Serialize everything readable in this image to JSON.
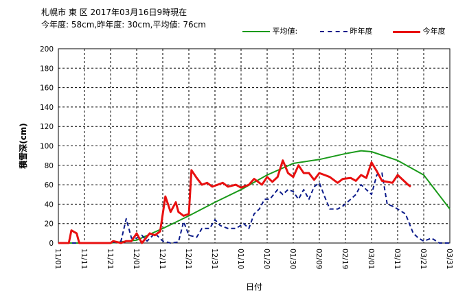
{
  "header": {
    "title_line1": "札幌市 東 区 2017年03月16日9時現在",
    "title_line2": "今年度: 58cm,昨年度: 30cm,平均値: 76cm"
  },
  "legend": {
    "avg_label": "平均値:",
    "last_label": "昨年度",
    "this_label": "今年度"
  },
  "colors": {
    "avg": "#1a9a1a",
    "last": "#0a1a8a",
    "this": "#e81010",
    "grid": "#000000"
  },
  "chart_data": {
    "type": "line",
    "xlabel": "日付",
    "ylabel": "積雪深(cm)",
    "ylim": [
      0,
      200
    ],
    "y_ticks": [
      "0",
      "20",
      "40",
      "60",
      "80",
      "100",
      "120",
      "140",
      "160",
      "180",
      "200"
    ],
    "x_tick_labels": [
      "11/01",
      "11/11",
      "11/21",
      "12/01",
      "12/11",
      "12/21",
      "12/31",
      "01/10",
      "01/20",
      "01/30",
      "02/09",
      "02/19",
      "03/01",
      "03/11",
      "03/21",
      "03/31"
    ],
    "x_start": "11/01",
    "x_end": "03/31",
    "grid": true,
    "legend_position": "top-right",
    "series": [
      {
        "name": "平均値:",
        "style": "solid",
        "points": [
          [
            "11/01",
            0
          ],
          [
            "11/21",
            0
          ],
          [
            "12/01",
            3
          ],
          [
            "12/11",
            15
          ],
          [
            "12/21",
            28
          ],
          [
            "12/31",
            42
          ],
          [
            "01/10",
            55
          ],
          [
            "01/20",
            70
          ],
          [
            "01/30",
            82
          ],
          [
            "02/09",
            86
          ],
          [
            "02/19",
            92
          ],
          [
            "02/25",
            95
          ],
          [
            "03/01",
            94
          ],
          [
            "03/11",
            85
          ],
          [
            "03/21",
            70
          ],
          [
            "03/31",
            35
          ]
        ]
      },
      {
        "name": "昨年度",
        "style": "dashed",
        "points": [
          [
            "11/01",
            0
          ],
          [
            "11/21",
            0
          ],
          [
            "11/25",
            2
          ],
          [
            "11/27",
            25
          ],
          [
            "11/29",
            5
          ],
          [
            "12/01",
            5
          ],
          [
            "12/03",
            8
          ],
          [
            "12/05",
            2
          ],
          [
            "12/08",
            10
          ],
          [
            "12/11",
            2
          ],
          [
            "12/14",
            0
          ],
          [
            "12/17",
            1
          ],
          [
            "12/19",
            22
          ],
          [
            "12/21",
            8
          ],
          [
            "12/24",
            6
          ],
          [
            "12/26",
            15
          ],
          [
            "12/29",
            15
          ],
          [
            "12/31",
            24
          ],
          [
            "01/02",
            18
          ],
          [
            "01/05",
            15
          ],
          [
            "01/08",
            15
          ],
          [
            "01/11",
            20
          ],
          [
            "01/13",
            15
          ],
          [
            "01/15",
            30
          ],
          [
            "01/17",
            35
          ],
          [
            "01/19",
            45
          ],
          [
            "01/21",
            45
          ],
          [
            "01/24",
            55
          ],
          [
            "01/26",
            50
          ],
          [
            "01/28",
            55
          ],
          [
            "01/30",
            53
          ],
          [
            "02/01",
            45
          ],
          [
            "02/03",
            55
          ],
          [
            "02/05",
            45
          ],
          [
            "02/07",
            58
          ],
          [
            "02/09",
            62
          ],
          [
            "02/11",
            48
          ],
          [
            "02/13",
            35
          ],
          [
            "02/16",
            35
          ],
          [
            "02/18",
            38
          ],
          [
            "02/21",
            45
          ],
          [
            "02/23",
            50
          ],
          [
            "02/25",
            60
          ],
          [
            "02/27",
            55
          ],
          [
            "03/01",
            50
          ],
          [
            "03/03",
            70
          ],
          [
            "03/05",
            72
          ],
          [
            "03/07",
            40
          ],
          [
            "03/09",
            38
          ],
          [
            "03/11",
            35
          ],
          [
            "03/14",
            30
          ],
          [
            "03/17",
            10
          ],
          [
            "03/19",
            5
          ],
          [
            "03/21",
            2
          ],
          [
            "03/24",
            5
          ],
          [
            "03/27",
            0
          ],
          [
            "03/31",
            0
          ]
        ]
      },
      {
        "name": "今年度",
        "style": "solid",
        "points": [
          [
            "11/01",
            0
          ],
          [
            "11/05",
            0
          ],
          [
            "11/06",
            13
          ],
          [
            "11/08",
            10
          ],
          [
            "11/09",
            0
          ],
          [
            "11/21",
            0
          ],
          [
            "11/22",
            2
          ],
          [
            "11/25",
            0
          ],
          [
            "11/27",
            2
          ],
          [
            "11/29",
            2
          ],
          [
            "12/01",
            10
          ],
          [
            "12/03",
            0
          ],
          [
            "12/06",
            10
          ],
          [
            "12/08",
            8
          ],
          [
            "12/10",
            12
          ],
          [
            "12/12",
            48
          ],
          [
            "12/14",
            32
          ],
          [
            "12/16",
            42
          ],
          [
            "12/17",
            32
          ],
          [
            "12/19",
            28
          ],
          [
            "12/21",
            30
          ],
          [
            "12/22",
            75
          ],
          [
            "12/24",
            67
          ],
          [
            "12/26",
            60
          ],
          [
            "12/28",
            62
          ],
          [
            "12/30",
            58
          ],
          [
            "01/01",
            60
          ],
          [
            "01/03",
            62
          ],
          [
            "01/05",
            58
          ],
          [
            "01/08",
            60
          ],
          [
            "01/10",
            57
          ],
          [
            "01/13",
            60
          ],
          [
            "01/15",
            66
          ],
          [
            "01/18",
            60
          ],
          [
            "01/20",
            68
          ],
          [
            "01/22",
            63
          ],
          [
            "01/24",
            68
          ],
          [
            "01/26",
            85
          ],
          [
            "01/28",
            72
          ],
          [
            "01/30",
            68
          ],
          [
            "02/01",
            80
          ],
          [
            "02/03",
            72
          ],
          [
            "02/05",
            72
          ],
          [
            "02/07",
            65
          ],
          [
            "02/09",
            72
          ],
          [
            "02/11",
            70
          ],
          [
            "02/13",
            68
          ],
          [
            "02/16",
            62
          ],
          [
            "02/18",
            66
          ],
          [
            "02/21",
            67
          ],
          [
            "02/23",
            64
          ],
          [
            "02/25",
            70
          ],
          [
            "02/27",
            67
          ],
          [
            "03/01",
            83
          ],
          [
            "03/03",
            74
          ],
          [
            "03/05",
            64
          ],
          [
            "03/07",
            63
          ],
          [
            "03/09",
            62
          ],
          [
            "03/11",
            70
          ],
          [
            "03/13",
            65
          ],
          [
            "03/15",
            60
          ],
          [
            "03/16",
            58
          ]
        ]
      }
    ]
  }
}
